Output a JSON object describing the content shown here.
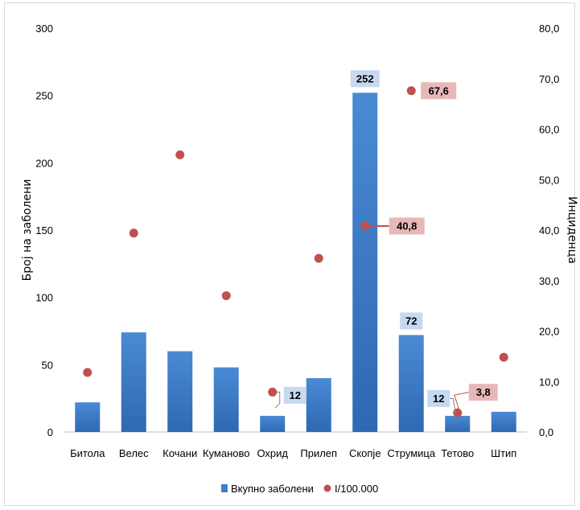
{
  "chart_data": {
    "type": "bar",
    "categories": [
      "Битола",
      "Велес",
      "Кочани",
      "Куманово",
      "Охрид",
      "Прилеп",
      "Скопје",
      "Струмица",
      "Тетово",
      "Штип"
    ],
    "series": [
      {
        "name": "Вкупно заболени",
        "type": "bar",
        "axis": "left",
        "values": [
          22,
          74,
          60,
          48,
          12,
          40,
          252,
          72,
          12,
          15
        ],
        "color": "#3f7ec9"
      },
      {
        "name": "I/100.000",
        "type": "scatter",
        "axis": "right",
        "values": [
          11.8,
          39.4,
          54.9,
          27.0,
          7.9,
          34.4,
          40.8,
          67.6,
          3.8,
          14.8
        ],
        "color": "#c0504d"
      }
    ],
    "ylabel": "Број на заболени",
    "y2label": "Инциденца",
    "ylim": [
      0,
      300
    ],
    "y2lim": [
      0,
      80
    ],
    "yticks": [
      "0",
      "50",
      "100",
      "150",
      "200",
      "250",
      "300"
    ],
    "y2ticks": [
      "0,0",
      "10,0",
      "20,0",
      "30,0",
      "40,0",
      "50,0",
      "60,0",
      "70,0",
      "80,0"
    ],
    "data_labels": [
      {
        "series": 0,
        "index": 4,
        "text": "12"
      },
      {
        "series": 0,
        "index": 6,
        "text": "252"
      },
      {
        "series": 0,
        "index": 7,
        "text": "72"
      },
      {
        "series": 0,
        "index": 8,
        "text": "12"
      },
      {
        "series": 1,
        "index": 6,
        "text": "40,8"
      },
      {
        "series": 1,
        "index": 7,
        "text": "67,6"
      },
      {
        "series": 1,
        "index": 8,
        "text": "3,8"
      }
    ],
    "grid": false,
    "legend": "bottom"
  }
}
